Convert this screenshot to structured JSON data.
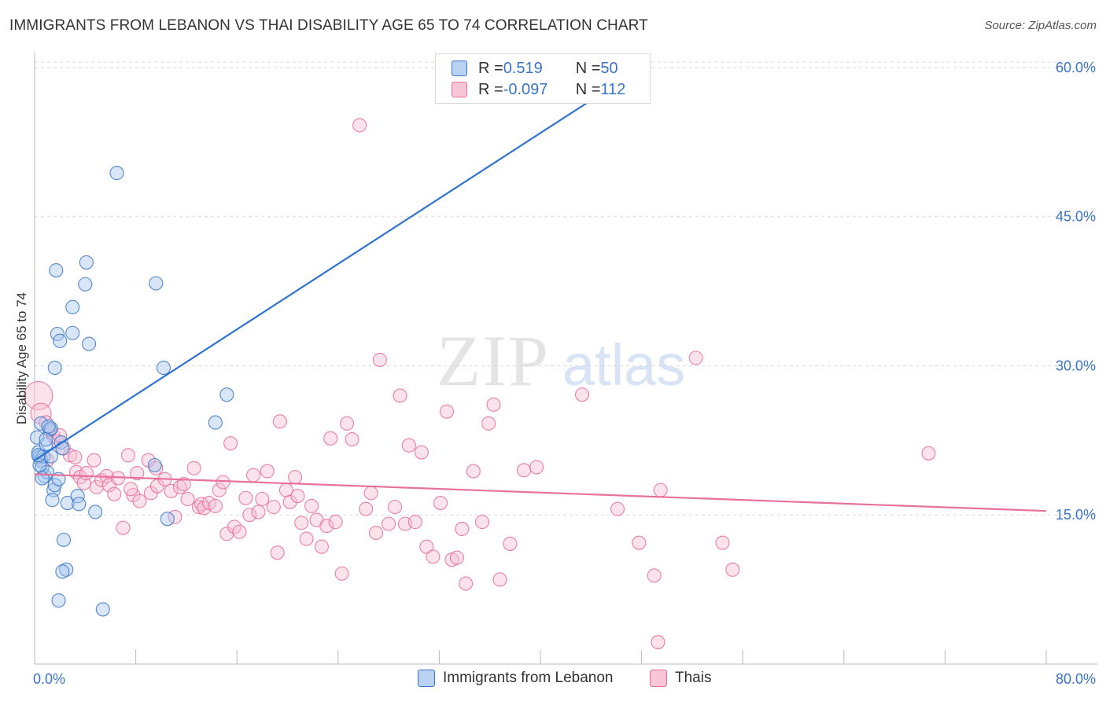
{
  "title": "IMMIGRANTS FROM LEBANON VS THAI DISABILITY AGE 65 TO 74 CORRELATION CHART",
  "source": "Source: ZipAtlas.com",
  "watermark": {
    "zip": "ZIP",
    "atlas": "atlas"
  },
  "colors": {
    "blue": "#3a74c9",
    "blue_fill": "#a9c7ef",
    "blue_line": "#2f72d0",
    "pink": "#e86b98",
    "pink_fill": "#f6bfd2",
    "pink_line": "#e8709a",
    "grid": "#d9d9d9"
  },
  "legend": {
    "rows": [
      {
        "r_label": "R = ",
        "r_value": " 0.519",
        "n_label": "N = ",
        "n_value": " 50",
        "color": "blue"
      },
      {
        "r_label": "R = ",
        "r_value": "-0.097",
        "n_label": "N = ",
        "n_value": "112",
        "color": "pink"
      }
    ]
  },
  "bottom_legend": [
    {
      "label": "Immigrants from Lebanon",
      "color": "blue"
    },
    {
      "label": "Thais",
      "color": "pink"
    }
  ],
  "chart_data": {
    "type": "scatter",
    "title": "IMMIGRANTS FROM LEBANON VS THAI DISABILITY AGE 65 TO 74 CORRELATION CHART",
    "xlabel": "",
    "ylabel": "Disability Age 65 to 74",
    "xlim": [
      0,
      80
    ],
    "ylim": [
      0,
      61.5
    ],
    "x_tick_labels": [
      "0.0%",
      "80.0%"
    ],
    "y_ticks": [
      15,
      30,
      45,
      60
    ],
    "y_tick_labels": [
      "15.0%",
      "30.0%",
      "45.0%",
      "60.0%"
    ],
    "grid": "horizontal dashed",
    "legend_position": "top-center",
    "series": [
      {
        "name": "Immigrants from Lebanon",
        "color": "blue",
        "trend": {
          "x": [
            0,
            48
          ],
          "y": [
            20.5,
            60.0
          ]
        },
        "points": [
          [
            0.2,
            22.8
          ],
          [
            0.3,
            21.3
          ],
          [
            0.4,
            20.8
          ],
          [
            0.5,
            20.5
          ],
          [
            0.5,
            24.2
          ],
          [
            0.6,
            19.8
          ],
          [
            0.7,
            20.9
          ],
          [
            0.8,
            18.9
          ],
          [
            0.9,
            22.1
          ],
          [
            1.0,
            19.3
          ],
          [
            1.2,
            23.6
          ],
          [
            1.3,
            23.7
          ],
          [
            1.3,
            20.9
          ],
          [
            1.5,
            17.5
          ],
          [
            1.6,
            18.0
          ],
          [
            1.6,
            29.8
          ],
          [
            1.7,
            39.6
          ],
          [
            1.8,
            33.2
          ],
          [
            1.9,
            18.6
          ],
          [
            2.0,
            32.5
          ],
          [
            2.1,
            22.3
          ],
          [
            2.2,
            21.7
          ],
          [
            2.3,
            12.5
          ],
          [
            2.5,
            9.5
          ],
          [
            2.2,
            9.3
          ],
          [
            2.6,
            16.2
          ],
          [
            3.0,
            33.3
          ],
          [
            3.0,
            35.9
          ],
          [
            3.4,
            16.9
          ],
          [
            3.5,
            16.1
          ],
          [
            4.0,
            38.2
          ],
          [
            4.1,
            40.4
          ],
          [
            4.3,
            32.2
          ],
          [
            4.8,
            15.3
          ],
          [
            5.4,
            5.5
          ],
          [
            6.5,
            49.4
          ],
          [
            9.6,
            38.3
          ],
          [
            9.5,
            20.0
          ],
          [
            10.2,
            29.8
          ],
          [
            10.5,
            14.6
          ],
          [
            14.3,
            24.3
          ],
          [
            15.2,
            27.1
          ],
          [
            42.8,
            60.1
          ],
          [
            0.4,
            20.0
          ],
          [
            0.9,
            22.6
          ],
          [
            1.1,
            23.9
          ],
          [
            0.6,
            18.7
          ],
          [
            1.4,
            16.5
          ],
          [
            1.9,
            6.4
          ],
          [
            0.3,
            21.0
          ]
        ]
      },
      {
        "name": "Thais",
        "color": "pink",
        "trend": {
          "x": [
            0,
            80
          ],
          "y": [
            19.1,
            15.4
          ]
        },
        "points": [
          [
            0.3,
            27.0
          ],
          [
            0.5,
            25.2
          ],
          [
            0.9,
            24.3
          ],
          [
            1.2,
            23.5
          ],
          [
            1.5,
            22.9
          ],
          [
            1.8,
            22.4
          ],
          [
            2.3,
            21.7
          ],
          [
            2.8,
            21.0
          ],
          [
            3.2,
            20.8
          ],
          [
            3.3,
            19.3
          ],
          [
            3.6,
            18.8
          ],
          [
            3.9,
            18.2
          ],
          [
            4.1,
            19.2
          ],
          [
            4.7,
            20.5
          ],
          [
            4.9,
            17.8
          ],
          [
            5.3,
            18.5
          ],
          [
            5.7,
            18.9
          ],
          [
            5.9,
            18.0
          ],
          [
            6.3,
            17.1
          ],
          [
            6.6,
            18.7
          ],
          [
            7.0,
            13.7
          ],
          [
            7.4,
            21.0
          ],
          [
            7.8,
            17.0
          ],
          [
            8.1,
            19.2
          ],
          [
            8.3,
            16.4
          ],
          [
            9.0,
            20.5
          ],
          [
            9.2,
            17.2
          ],
          [
            9.6,
            19.7
          ],
          [
            9.7,
            17.9
          ],
          [
            10.3,
            18.6
          ],
          [
            10.8,
            17.4
          ],
          [
            11.1,
            14.8
          ],
          [
            11.5,
            17.8
          ],
          [
            11.8,
            18.1
          ],
          [
            12.1,
            16.6
          ],
          [
            12.6,
            19.7
          ],
          [
            13.0,
            15.8
          ],
          [
            13.2,
            16.1
          ],
          [
            13.4,
            15.7
          ],
          [
            13.8,
            16.2
          ],
          [
            14.3,
            15.9
          ],
          [
            14.6,
            17.5
          ],
          [
            14.9,
            18.3
          ],
          [
            15.2,
            13.1
          ],
          [
            15.5,
            22.2
          ],
          [
            15.8,
            13.8
          ],
          [
            16.2,
            13.3
          ],
          [
            16.7,
            16.7
          ],
          [
            17.0,
            15.0
          ],
          [
            17.3,
            19.0
          ],
          [
            17.7,
            15.3
          ],
          [
            18.0,
            16.6
          ],
          [
            18.4,
            19.4
          ],
          [
            18.9,
            15.8
          ],
          [
            19.2,
            11.2
          ],
          [
            19.4,
            24.4
          ],
          [
            19.9,
            17.5
          ],
          [
            20.2,
            16.3
          ],
          [
            20.6,
            18.8
          ],
          [
            20.8,
            16.9
          ],
          [
            21.1,
            14.2
          ],
          [
            21.5,
            12.6
          ],
          [
            21.9,
            15.9
          ],
          [
            22.3,
            14.5
          ],
          [
            22.7,
            11.8
          ],
          [
            23.1,
            13.9
          ],
          [
            23.4,
            22.7
          ],
          [
            23.8,
            14.3
          ],
          [
            24.3,
            9.1
          ],
          [
            24.7,
            24.2
          ],
          [
            25.1,
            22.6
          ],
          [
            25.7,
            54.2
          ],
          [
            26.2,
            15.6
          ],
          [
            26.6,
            17.2
          ],
          [
            27.0,
            13.2
          ],
          [
            27.3,
            30.6
          ],
          [
            28.0,
            14.1
          ],
          [
            28.5,
            15.8
          ],
          [
            28.9,
            27.0
          ],
          [
            29.3,
            14.1
          ],
          [
            29.6,
            22.0
          ],
          [
            30.1,
            14.3
          ],
          [
            30.6,
            21.3
          ],
          [
            31.0,
            11.8
          ],
          [
            31.5,
            10.8
          ],
          [
            32.1,
            16.2
          ],
          [
            32.6,
            25.4
          ],
          [
            33.0,
            10.5
          ],
          [
            33.4,
            10.7
          ],
          [
            33.8,
            13.6
          ],
          [
            34.1,
            8.1
          ],
          [
            34.7,
            19.4
          ],
          [
            35.4,
            14.3
          ],
          [
            35.9,
            24.2
          ],
          [
            36.3,
            26.1
          ],
          [
            36.8,
            8.5
          ],
          [
            37.6,
            12.1
          ],
          [
            38.7,
            19.5
          ],
          [
            39.7,
            19.8
          ],
          [
            43.3,
            27.1
          ],
          [
            46.1,
            15.6
          ],
          [
            47.8,
            12.2
          ],
          [
            49.0,
            8.9
          ],
          [
            49.5,
            17.5
          ],
          [
            49.3,
            2.2
          ],
          [
            52.3,
            30.8
          ],
          [
            54.4,
            12.2
          ],
          [
            55.2,
            9.5
          ],
          [
            70.7,
            21.2
          ],
          [
            1.0,
            20.5
          ],
          [
            2.0,
            23.0
          ],
          [
            7.6,
            17.6
          ]
        ]
      }
    ]
  }
}
